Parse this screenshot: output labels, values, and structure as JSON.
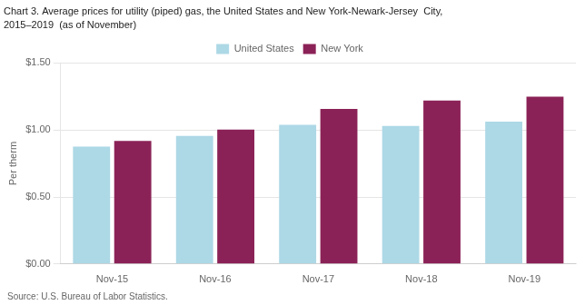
{
  "chart_data": {
    "type": "bar",
    "title": "Chart 3. Average prices for utility (piped) gas, the United States and New York-Newark-Jersey  City,",
    "subtitle": "2015–2019  (as of November)",
    "ylabel": "Per therm",
    "annotation": "Source: U.S. Bureau of Labor Statistics.",
    "categories": [
      "Nov-15",
      "Nov-16",
      "Nov-17",
      "Nov-18",
      "Nov-19"
    ],
    "series": [
      {
        "name": "United States",
        "color": "#ADD8E6",
        "values": [
          0.876,
          0.955,
          1.038,
          1.03,
          1.063
        ]
      },
      {
        "name": "New York",
        "color": "#8B2257",
        "values": [
          0.918,
          1.003,
          1.158,
          1.22,
          1.248
        ]
      }
    ],
    "ylim": [
      0.0,
      1.5
    ],
    "yticks": [
      {
        "value": 0.0,
        "label": "$0.00"
      },
      {
        "value": 0.5,
        "label": "$0.50"
      },
      {
        "value": 1.0,
        "label": "$1.00"
      },
      {
        "value": 1.5,
        "label": "$1.50"
      }
    ],
    "grid": true,
    "legend": "top"
  }
}
